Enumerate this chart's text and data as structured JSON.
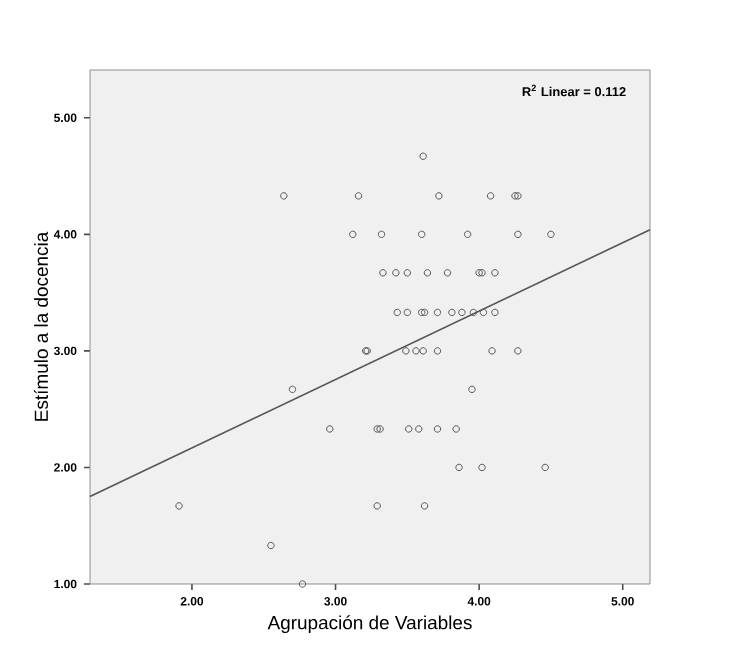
{
  "chart_data": {
    "type": "scatter",
    "xlabel": "Agrupación de Variables",
    "ylabel": "Estímulo a la docencia",
    "annotations": [
      "R$^{2}$ Linear = 0.112"
    ],
    "xlim": [
      1.29,
      5.19
    ],
    "ylim": [
      1,
      5.41
    ],
    "xticks": [
      {
        "value": 2,
        "label": "2.00"
      },
      {
        "value": 3,
        "label": "3.00"
      },
      {
        "value": 4,
        "label": "4.00"
      },
      {
        "value": 5,
        "label": "5.00"
      }
    ],
    "yticks": [
      {
        "value": 1,
        "label": "1.00"
      },
      {
        "value": 2,
        "label": "2.00"
      },
      {
        "value": 3,
        "label": "3.00"
      },
      {
        "value": 4,
        "label": "4.00"
      },
      {
        "value": 5,
        "label": "5.00"
      }
    ],
    "series": [
      {
        "marker": "circle",
        "color": "#555555",
        "x": [
          3.61,
          2.64,
          3.16,
          3.72,
          4.08,
          4.25,
          4.27,
          3.12,
          3.32,
          3.6,
          3.92,
          4.27,
          4.5,
          3.33,
          3.42,
          3.5,
          3.64,
          3.78,
          4.0,
          4.02,
          4.11,
          3.43,
          3.5,
          3.6,
          3.62,
          3.71,
          3.81,
          3.88,
          3.96,
          4.03,
          4.11,
          3.21,
          3.22,
          3.49,
          3.56,
          3.61,
          3.71,
          4.09,
          4.27,
          2.7,
          3.95,
          2.96,
          3.29,
          3.31,
          3.51,
          3.58,
          3.71,
          3.84,
          3.86,
          4.02,
          4.46,
          1.91,
          3.29,
          3.62,
          2.55,
          2.77
        ],
        "values": [
          4.67,
          4.33,
          4.33,
          4.33,
          4.33,
          4.33,
          4.33,
          4.0,
          4.0,
          4.0,
          4.0,
          4.0,
          4.0,
          3.67,
          3.67,
          3.67,
          3.67,
          3.67,
          3.67,
          3.67,
          3.67,
          3.33,
          3.33,
          3.33,
          3.33,
          3.33,
          3.33,
          3.33,
          3.33,
          3.33,
          3.33,
          3.0,
          3.0,
          3.0,
          3.0,
          3.0,
          3.0,
          3.0,
          3.0,
          2.67,
          2.67,
          2.33,
          2.33,
          2.33,
          2.33,
          2.33,
          2.33,
          2.33,
          2.0,
          2.0,
          2.0,
          1.67,
          1.67,
          1.67,
          1.33,
          1.0
        ]
      },
      {
        "type": "line",
        "color": "#555555",
        "x": [
          1.29,
          5.19
        ],
        "values": [
          1.75,
          4.04
        ]
      }
    ]
  }
}
